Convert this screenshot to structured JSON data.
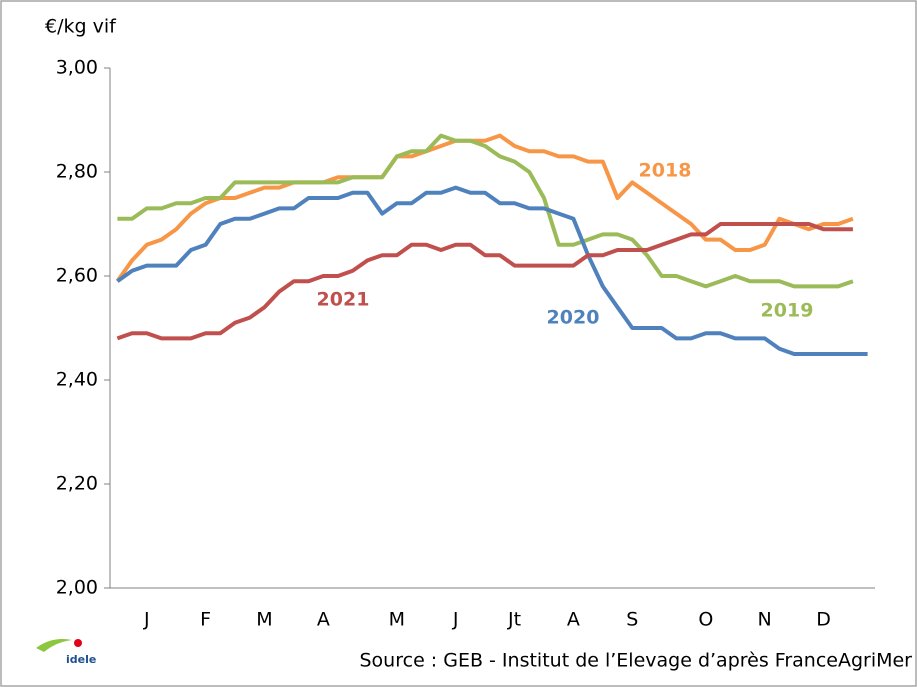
{
  "chart_data": {
    "type": "line",
    "y_label": "€/kg vif",
    "source": "Source : GEB - Institut de l’Elevage d’après FranceAgriMer",
    "logo": "idele",
    "categories": [
      null,
      null,
      "J",
      null,
      null,
      null,
      "F",
      null,
      null,
      null,
      "M",
      null,
      null,
      null,
      "A",
      null,
      null,
      null,
      null,
      "M",
      null,
      null,
      null,
      "J",
      null,
      null,
      null,
      "Jt",
      null,
      null,
      null,
      "A",
      null,
      null,
      null,
      "S",
      null,
      null,
      null,
      null,
      "O",
      null,
      null,
      null,
      "N",
      null,
      null,
      null,
      "D",
      null,
      null,
      null
    ],
    "ylim": [
      2,
      3
    ],
    "yticks": [
      {
        "value": 2,
        "label": "2,00"
      },
      {
        "value": 2.2,
        "label": "2,20"
      },
      {
        "value": 2.4,
        "label": "2,40"
      },
      {
        "value": 2.6,
        "label": "2,60"
      },
      {
        "value": 2.8,
        "label": "2,80"
      },
      {
        "value": 3,
        "label": "3,00"
      }
    ],
    "series": [
      {
        "name": "2018",
        "color": "#f79646",
        "values": [
          2.59,
          2.63,
          2.66,
          2.67,
          2.69,
          2.72,
          2.74,
          2.75,
          2.75,
          2.76,
          2.77,
          2.77,
          2.78,
          2.78,
          2.78,
          2.79,
          2.79,
          2.79,
          2.79,
          2.83,
          2.83,
          2.84,
          2.85,
          2.86,
          2.86,
          2.86,
          2.87,
          2.85,
          2.84,
          2.84,
          2.83,
          2.83,
          2.82,
          2.82,
          2.75,
          2.78,
          2.76,
          2.74,
          2.72,
          2.7,
          2.67,
          2.67,
          2.65,
          2.65,
          2.66,
          2.71,
          2.7,
          2.69,
          2.7,
          2.7,
          2.71,
          null
        ]
      },
      {
        "name": "2019",
        "color": "#9bbb59",
        "values": [
          2.71,
          2.71,
          2.73,
          2.73,
          2.74,
          2.74,
          2.75,
          2.75,
          2.78,
          2.78,
          2.78,
          2.78,
          2.78,
          2.78,
          2.78,
          2.78,
          2.79,
          2.79,
          2.79,
          2.83,
          2.84,
          2.84,
          2.87,
          2.86,
          2.86,
          2.85,
          2.83,
          2.82,
          2.8,
          2.75,
          2.66,
          2.66,
          2.67,
          2.68,
          2.68,
          2.67,
          2.64,
          2.6,
          2.6,
          2.59,
          2.58,
          2.59,
          2.6,
          2.59,
          2.59,
          2.59,
          2.58,
          2.58,
          2.58,
          2.58,
          2.59,
          null
        ]
      },
      {
        "name": "2020",
        "color": "#4f81bd",
        "values": [
          2.59,
          2.61,
          2.62,
          2.62,
          2.62,
          2.65,
          2.66,
          2.7,
          2.71,
          2.71,
          2.72,
          2.73,
          2.73,
          2.75,
          2.75,
          2.75,
          2.76,
          2.76,
          2.72,
          2.74,
          2.74,
          2.76,
          2.76,
          2.77,
          2.76,
          2.76,
          2.74,
          2.74,
          2.73,
          2.73,
          2.72,
          2.71,
          2.64,
          2.58,
          2.54,
          2.5,
          2.5,
          2.5,
          2.48,
          2.48,
          2.49,
          2.49,
          2.48,
          2.48,
          2.48,
          2.46,
          2.45,
          2.45,
          2.45,
          2.45,
          2.45,
          2.45
        ]
      },
      {
        "name": "2021",
        "color": "#c0504d",
        "values": [
          2.48,
          2.49,
          2.49,
          2.48,
          2.48,
          2.48,
          2.49,
          2.49,
          2.51,
          2.52,
          2.54,
          2.57,
          2.59,
          2.59,
          2.6,
          2.6,
          2.61,
          2.63,
          2.64,
          2.64,
          2.66,
          2.66,
          2.65,
          2.66,
          2.66,
          2.64,
          2.64,
          2.62,
          2.62,
          2.62,
          2.62,
          2.62,
          2.64,
          2.64,
          2.65,
          2.65,
          2.65,
          2.66,
          2.67,
          2.68,
          2.68,
          2.7,
          2.7,
          2.7,
          2.7,
          2.7,
          2.7,
          2.7,
          2.69,
          2.69,
          2.69,
          null
        ]
      }
    ]
  }
}
